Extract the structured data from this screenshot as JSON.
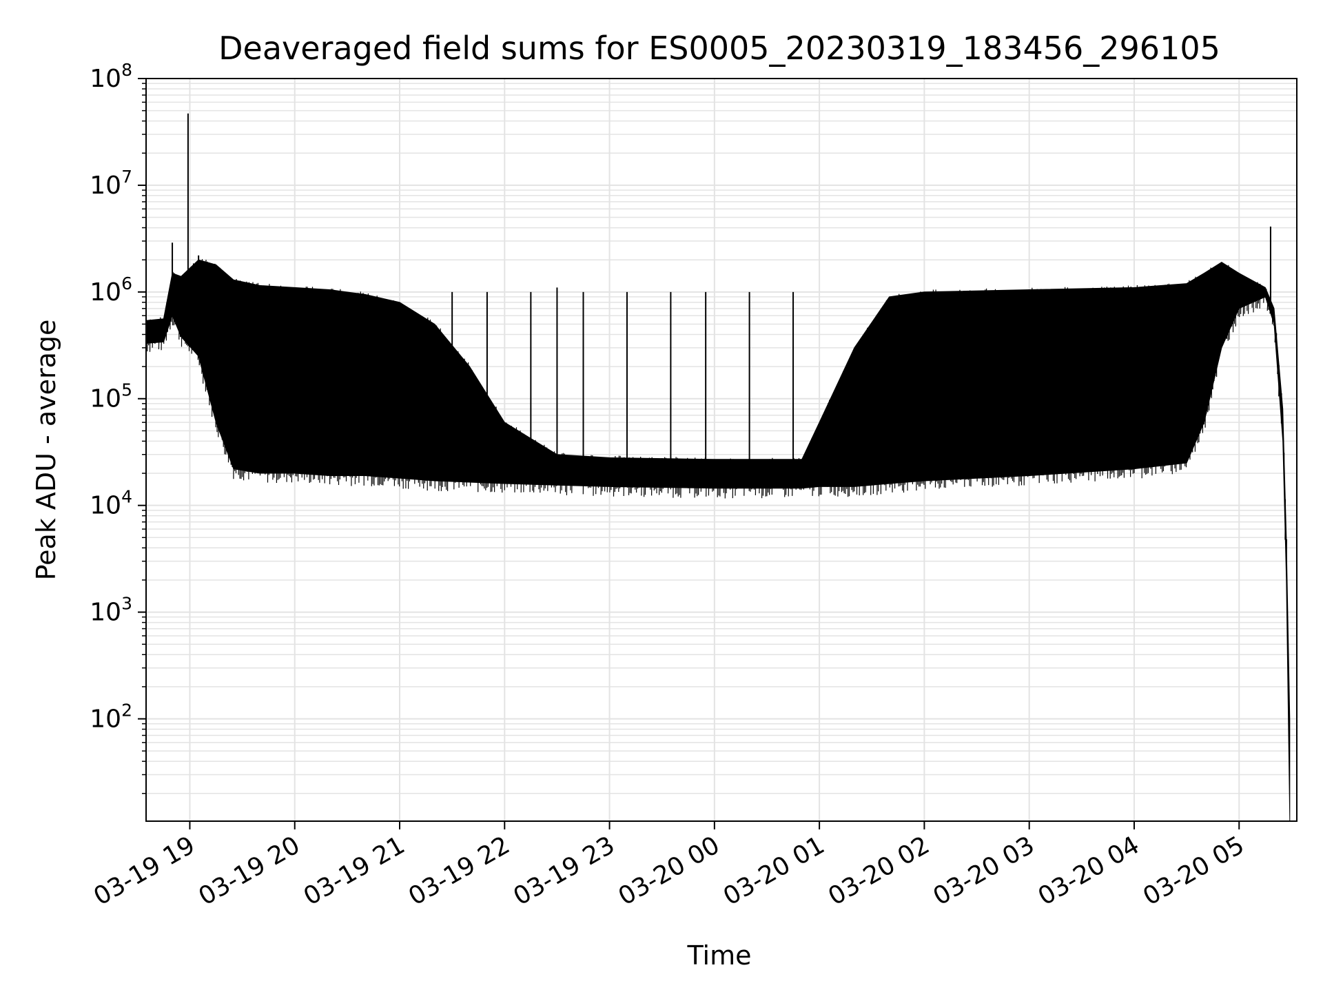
{
  "chart_data": {
    "type": "line",
    "title": "Deaveraged field sums for ES0005_20230319_183456_296105",
    "xlabel": "Time",
    "ylabel": "Peak ADU - average",
    "yscale": "log",
    "ylim": [
      11,
      100000000
    ],
    "xlim": [
      "2023-03-19 18:35",
      "2023-03-20 05:33"
    ],
    "grid": true,
    "line_color": "#000000",
    "x_ticks": [
      {
        "label": "03-19 19",
        "x": "2023-03-19 19:00"
      },
      {
        "label": "03-19 20",
        "x": "2023-03-19 20:00"
      },
      {
        "label": "03-19 21",
        "x": "2023-03-19 21:00"
      },
      {
        "label": "03-19 22",
        "x": "2023-03-19 22:00"
      },
      {
        "label": "03-19 23",
        "x": "2023-03-19 23:00"
      },
      {
        "label": "03-20 00",
        "x": "2023-03-20 00:00"
      },
      {
        "label": "03-20 01",
        "x": "2023-03-20 01:00"
      },
      {
        "label": "03-20 02",
        "x": "2023-03-20 02:00"
      },
      {
        "label": "03-20 03",
        "x": "2023-03-20 03:00"
      },
      {
        "label": "03-20 04",
        "x": "2023-03-20 04:00"
      },
      {
        "label": "03-20 05",
        "x": "2023-03-20 05:00"
      }
    ],
    "y_ticks": [
      {
        "base": "10",
        "exp": "2",
        "value": 100
      },
      {
        "base": "10",
        "exp": "3",
        "value": 1000
      },
      {
        "base": "10",
        "exp": "4",
        "value": 10000
      },
      {
        "base": "10",
        "exp": "5",
        "value": 100000
      },
      {
        "base": "10",
        "exp": "6",
        "value": 1000000
      },
      {
        "base": "10",
        "exp": "7",
        "value": 10000000
      },
      {
        "base": "10",
        "exp": "8",
        "value": 100000000
      }
    ],
    "series": [
      {
        "envelope": [
          {
            "x": "2023-03-19 18:35",
            "lower": 330000,
            "upper": 540000
          },
          {
            "x": "2023-03-19 18:45",
            "lower": 340000,
            "upper": 560000
          },
          {
            "x": "2023-03-19 18:50",
            "lower": 600000,
            "upper": 1500000
          },
          {
            "x": "2023-03-19 18:55",
            "lower": 380000,
            "upper": 1400000
          },
          {
            "x": "2023-03-19 19:05",
            "lower": 250000,
            "upper": 2000000
          },
          {
            "x": "2023-03-19 19:15",
            "lower": 60000,
            "upper": 1800000
          },
          {
            "x": "2023-03-19 19:25",
            "lower": 22000,
            "upper": 1300000
          },
          {
            "x": "2023-03-19 19:40",
            "lower": 20000,
            "upper": 1150000
          },
          {
            "x": "2023-03-19 20:00",
            "lower": 20000,
            "upper": 1100000
          },
          {
            "x": "2023-03-19 20:20",
            "lower": 19000,
            "upper": 1050000
          },
          {
            "x": "2023-03-19 20:40",
            "lower": 19000,
            "upper": 950000
          },
          {
            "x": "2023-03-19 21:00",
            "lower": 18000,
            "upper": 800000
          },
          {
            "x": "2023-03-19 21:20",
            "lower": 17000,
            "upper": 500000
          },
          {
            "x": "2023-03-19 21:40",
            "lower": 16500,
            "upper": 200000
          },
          {
            "x": "2023-03-19 22:00",
            "lower": 16000,
            "upper": 60000
          },
          {
            "x": "2023-03-19 22:30",
            "lower": 15500,
            "upper": 30000
          },
          {
            "x": "2023-03-19 23:00",
            "lower": 15000,
            "upper": 28000
          },
          {
            "x": "2023-03-20 00:00",
            "lower": 14500,
            "upper": 27000
          },
          {
            "x": "2023-03-20 00:50",
            "lower": 14500,
            "upper": 27000
          },
          {
            "x": "2023-03-20 01:00",
            "lower": 15000,
            "upper": 60000
          },
          {
            "x": "2023-03-20 01:20",
            "lower": 15000,
            "upper": 300000
          },
          {
            "x": "2023-03-20 01:40",
            "lower": 16000,
            "upper": 900000
          },
          {
            "x": "2023-03-20 02:00",
            "lower": 17000,
            "upper": 1000000
          },
          {
            "x": "2023-03-20 03:00",
            "lower": 19000,
            "upper": 1050000
          },
          {
            "x": "2023-03-20 04:00",
            "lower": 22000,
            "upper": 1100000
          },
          {
            "x": "2023-03-20 04:30",
            "lower": 25000,
            "upper": 1200000
          },
          {
            "x": "2023-03-20 04:40",
            "lower": 60000,
            "upper": 1500000
          },
          {
            "x": "2023-03-20 04:50",
            "lower": 300000,
            "upper": 1900000
          },
          {
            "x": "2023-03-20 05:00",
            "lower": 700000,
            "upper": 1500000
          },
          {
            "x": "2023-03-20 05:15",
            "lower": 900000,
            "upper": 1100000
          },
          {
            "x": "2023-03-20 05:20",
            "lower": 500000,
            "upper": 700000
          },
          {
            "x": "2023-03-20 05:25",
            "lower": 40000,
            "upper": 80000
          },
          {
            "x": "2023-03-20 05:27",
            "lower": 2000,
            "upper": 5000
          },
          {
            "x": "2023-03-20 05:29",
            "lower": 11,
            "upper": 100
          }
        ],
        "spikes": [
          {
            "x": "2023-03-19 18:50",
            "value": 2900000
          },
          {
            "x": "2023-03-19 18:59",
            "value": 47000000
          },
          {
            "x": "2023-03-19 19:05",
            "value": 2200000
          },
          {
            "x": "2023-03-19 21:30",
            "value": 1000000
          },
          {
            "x": "2023-03-19 21:50",
            "value": 1000000
          },
          {
            "x": "2023-03-19 22:15",
            "value": 1000000
          },
          {
            "x": "2023-03-19 22:30",
            "value": 1100000
          },
          {
            "x": "2023-03-19 22:45",
            "value": 1000000
          },
          {
            "x": "2023-03-19 23:10",
            "value": 1000000
          },
          {
            "x": "2023-03-19 23:35",
            "value": 1000000
          },
          {
            "x": "2023-03-19 23:55",
            "value": 1000000
          },
          {
            "x": "2023-03-20 00:20",
            "value": 1000000
          },
          {
            "x": "2023-03-20 00:45",
            "value": 1000000
          },
          {
            "x": "2023-03-20 05:18",
            "value": 4100000
          }
        ]
      }
    ]
  }
}
